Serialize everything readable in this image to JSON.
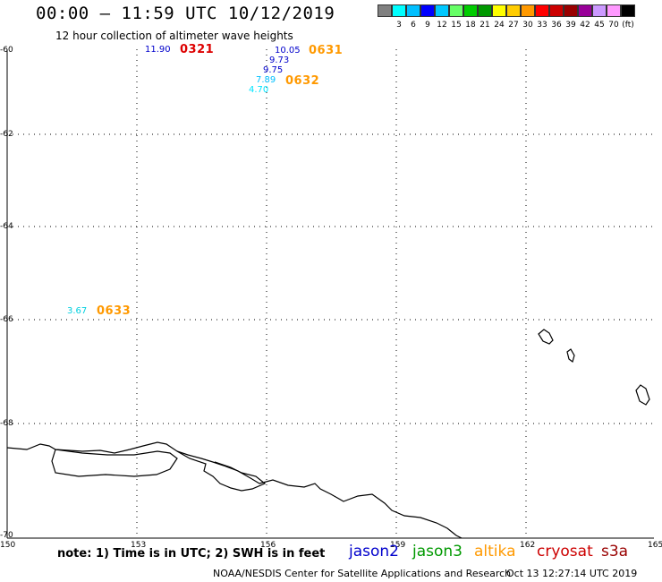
{
  "header": {
    "title": "00:00 – 11:59 UTC 10/12/2019",
    "subtitle": "12 hour collection of altimeter wave heights"
  },
  "legend": {
    "units": "(ft)",
    "items": [
      {
        "label": "",
        "color": "#808080"
      },
      {
        "label": "3",
        "color": "#00ffff"
      },
      {
        "label": "6",
        "color": "#00bfff"
      },
      {
        "label": "9",
        "color": "#0000ff"
      },
      {
        "label": "12",
        "color": "#00c8ff"
      },
      {
        "label": "15",
        "color": "#66ff66"
      },
      {
        "label": "18",
        "color": "#00cc00"
      },
      {
        "label": "21",
        "color": "#009900"
      },
      {
        "label": "24",
        "color": "#ffff00"
      },
      {
        "label": "27",
        "color": "#ffcc00"
      },
      {
        "label": "30",
        "color": "#ff9900"
      },
      {
        "label": "33",
        "color": "#ff0000"
      },
      {
        "label": "36",
        "color": "#cc0000"
      },
      {
        "label": "39",
        "color": "#990000"
      },
      {
        "label": "42",
        "color": "#990099"
      },
      {
        "label": "45",
        "color": "#cc99ff"
      },
      {
        "label": "70",
        "color": "#ff99ff"
      },
      {
        "label": "",
        "color": "#000000"
      }
    ]
  },
  "axes": {
    "lat_labels": [
      "-60",
      "-62",
      "-64",
      "-66",
      "-68",
      "-70"
    ],
    "lon_labels": [
      "150",
      "153",
      "156",
      "159",
      "162",
      "165"
    ]
  },
  "measurements": [
    {
      "text": "11.90",
      "color": "#0000cc"
    },
    {
      "text": "10.05",
      "color": "#0000cc"
    },
    {
      "text": "9.73",
      "color": "#0000cc"
    },
    {
      "text": "9.75",
      "color": "#0000cc"
    },
    {
      "text": "7.89",
      "color": "#00bfff"
    },
    {
      "text": "4.70",
      "color": "#00e5ff"
    },
    {
      "text": "3.67",
      "color": "#00d0e0"
    }
  ],
  "passes": [
    {
      "text": "0321",
      "color": "#dd0000"
    },
    {
      "text": "0631",
      "color": "#ff9900"
    },
    {
      "text": "0632",
      "color": "#ff9900"
    },
    {
      "text": "0633",
      "color": "#ff9900"
    }
  ],
  "footer": {
    "note": "note:  1) Time is in UTC;  2) SWH is in feet",
    "credit": "NOAA/NESDIS Center for Satellite Applications and Research",
    "timestamp": "Oct 13 12:27:14 UTC 2019",
    "satellites": [
      {
        "name": "jason2",
        "color": "#0000cc"
      },
      {
        "name": "jason3",
        "color": "#009900"
      },
      {
        "name": "altika",
        "color": "#ff9900"
      },
      {
        "name": "cryosat",
        "color": "#cc0000"
      },
      {
        "name": "s3a",
        "color": "#990000"
      }
    ]
  }
}
